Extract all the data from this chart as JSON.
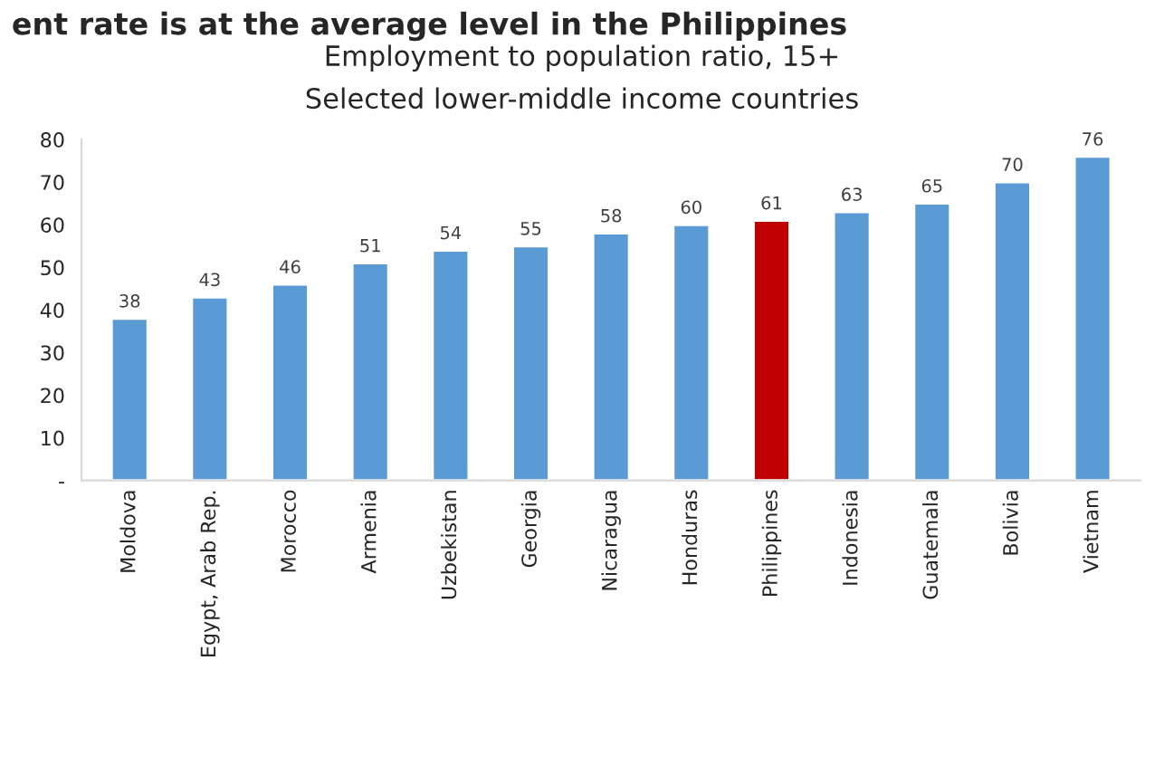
{
  "chart_data": {
    "type": "bar",
    "title": "Employment to population ratio, 15+",
    "subtitle": "Selected lower-middle income countries",
    "annotations": [
      "ent rate is at the average level in the Philippines"
    ],
    "categories": [
      "Moldova",
      "Egypt, Arab Rep.",
      "Morocco",
      "Armenia",
      "Uzbekistan",
      "Georgia",
      "Nicaragua",
      "Honduras",
      "Philippines",
      "Indonesia",
      "Guatemala",
      "Bolivia",
      "Vietnam"
    ],
    "values": [
      38,
      43,
      46,
      51,
      54,
      55,
      58,
      60,
      61,
      63,
      65,
      70,
      76
    ],
    "colors": [
      "#5b9bd5",
      "#5b9bd5",
      "#5b9bd5",
      "#5b9bd5",
      "#5b9bd5",
      "#5b9bd5",
      "#5b9bd5",
      "#5b9bd5",
      "#c00000",
      "#5b9bd5",
      "#5b9bd5",
      "#5b9bd5",
      "#5b9bd5"
    ],
    "ylim": [
      0,
      80
    ],
    "yticks": [
      {
        "value": 0,
        "label": "-"
      },
      10,
      20,
      30,
      40,
      50,
      60,
      70,
      80
    ],
    "data_labels": true,
    "grid": false,
    "legend": false
  }
}
